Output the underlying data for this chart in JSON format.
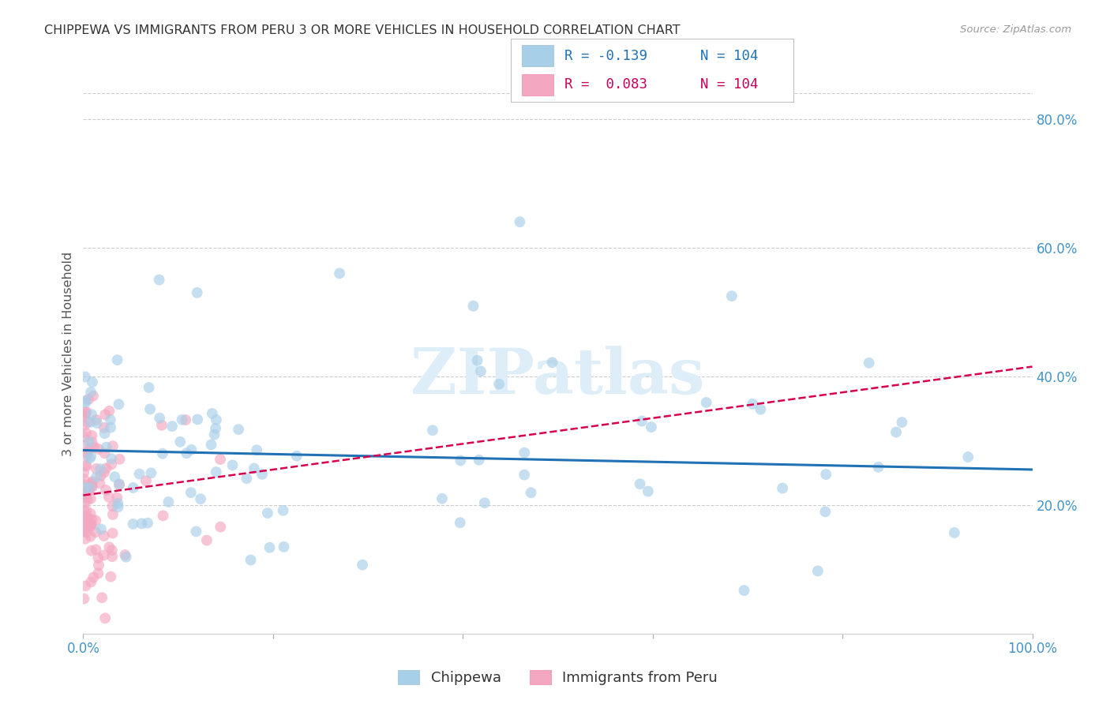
{
  "title": "CHIPPEWA VS IMMIGRANTS FROM PERU 3 OR MORE VEHICLES IN HOUSEHOLD CORRELATION CHART",
  "source": "Source: ZipAtlas.com",
  "ylabel": "3 or more Vehicles in Household",
  "xlim": [
    0.0,
    1.0
  ],
  "ylim": [
    0.0,
    0.87
  ],
  "yticks": [
    0.2,
    0.4,
    0.6,
    0.8
  ],
  "ytick_labels": [
    "20.0%",
    "40.0%",
    "60.0%",
    "80.0%"
  ],
  "xticks": [
    0.0,
    0.2,
    0.4,
    0.6,
    0.8,
    1.0
  ],
  "xtick_labels": [
    "0.0%",
    "",
    "",
    "",
    "",
    "100.0%"
  ],
  "chippewa_color": "#a8cfe8",
  "peru_color": "#f4a7c0",
  "chippewa_line_color": "#2171b5",
  "peru_line_color": "#d6004c",
  "background_color": "#ffffff",
  "grid_color": "#cccccc",
  "title_color": "#333333",
  "axis_color": "#4393c3",
  "watermark_color": "#ddeef8",
  "chippewa_N": 104,
  "peru_N": 104,
  "chip_trend_y0": 0.285,
  "chip_trend_y1": 0.255,
  "peru_trend_y0": 0.215,
  "peru_trend_y1": 0.415,
  "legend_R1": "R = -0.139",
  "legend_N1": "N = 104",
  "legend_R2": "R =  0.083",
  "legend_N2": "N = 104",
  "legend_color1": "#2171b5",
  "legend_color2": "#c8005a",
  "marker_size": 100
}
